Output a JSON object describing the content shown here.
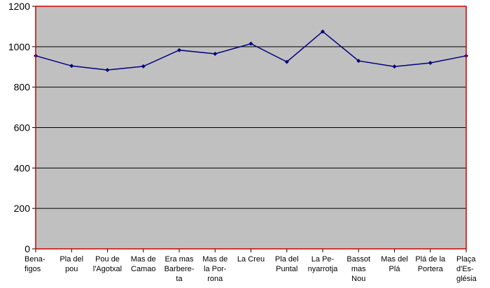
{
  "chart_data": {
    "type": "line",
    "title": "",
    "xlabel": "",
    "ylabel": "",
    "ylim": [
      0,
      1200
    ],
    "yticks": [
      0,
      200,
      400,
      600,
      800,
      1000,
      1200
    ],
    "grid": true,
    "legend": "none",
    "categories": [
      [
        "Bena-",
        "figos"
      ],
      [
        "Pla del",
        "pou"
      ],
      [
        "Pou de",
        "l'Agotxal"
      ],
      [
        "Mas de",
        "Camao"
      ],
      [
        "Era mas",
        "Barbere-",
        "ta"
      ],
      [
        "Mas de",
        "la Por-",
        "rona"
      ],
      [
        "La Creu"
      ],
      [
        "Pla del",
        "Puntal"
      ],
      [
        "La Pe-",
        "nyarrotja"
      ],
      [
        "Bassot",
        "mas",
        "Nou"
      ],
      [
        "Mas del",
        "Plá"
      ],
      [
        "Plá de la",
        "Portera"
      ],
      [
        "Plaça",
        "d'Es-",
        "glésia"
      ]
    ],
    "series": [
      {
        "values": [
          955,
          905,
          885,
          903,
          983,
          965,
          1015,
          925,
          1075,
          930,
          902,
          920,
          955
        ]
      }
    ],
    "colors": {
      "plot_bg": "#c0c0c0",
      "border": "#cc0000",
      "line": "#000080",
      "grid": "#000000"
    }
  }
}
